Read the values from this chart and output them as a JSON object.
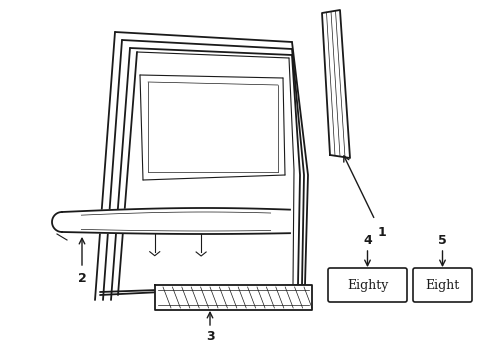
{
  "background_color": "#ffffff",
  "line_color": "#1a1a1a",
  "labels": [
    "1",
    "2",
    "3",
    "4",
    "5"
  ],
  "badge_eighty_text": "Eighty",
  "badge_eight_text": "Eight"
}
